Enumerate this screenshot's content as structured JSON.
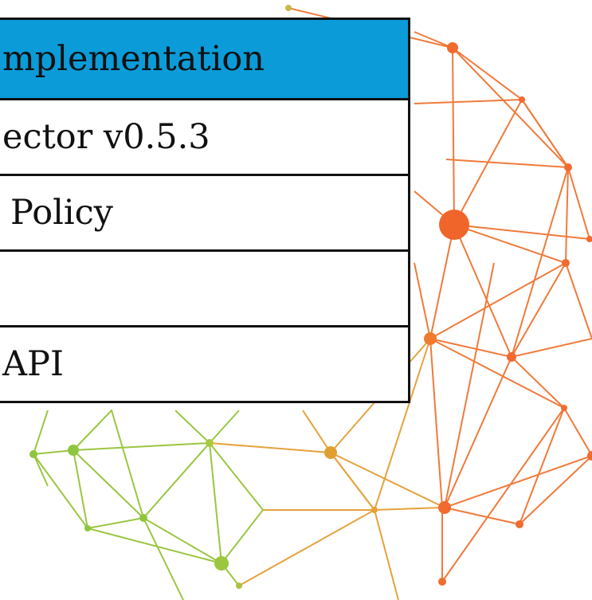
{
  "table": {
    "header": "mplementation",
    "rows": [
      "ector v0.5.3",
      "Policy",
      "API"
    ]
  }
}
